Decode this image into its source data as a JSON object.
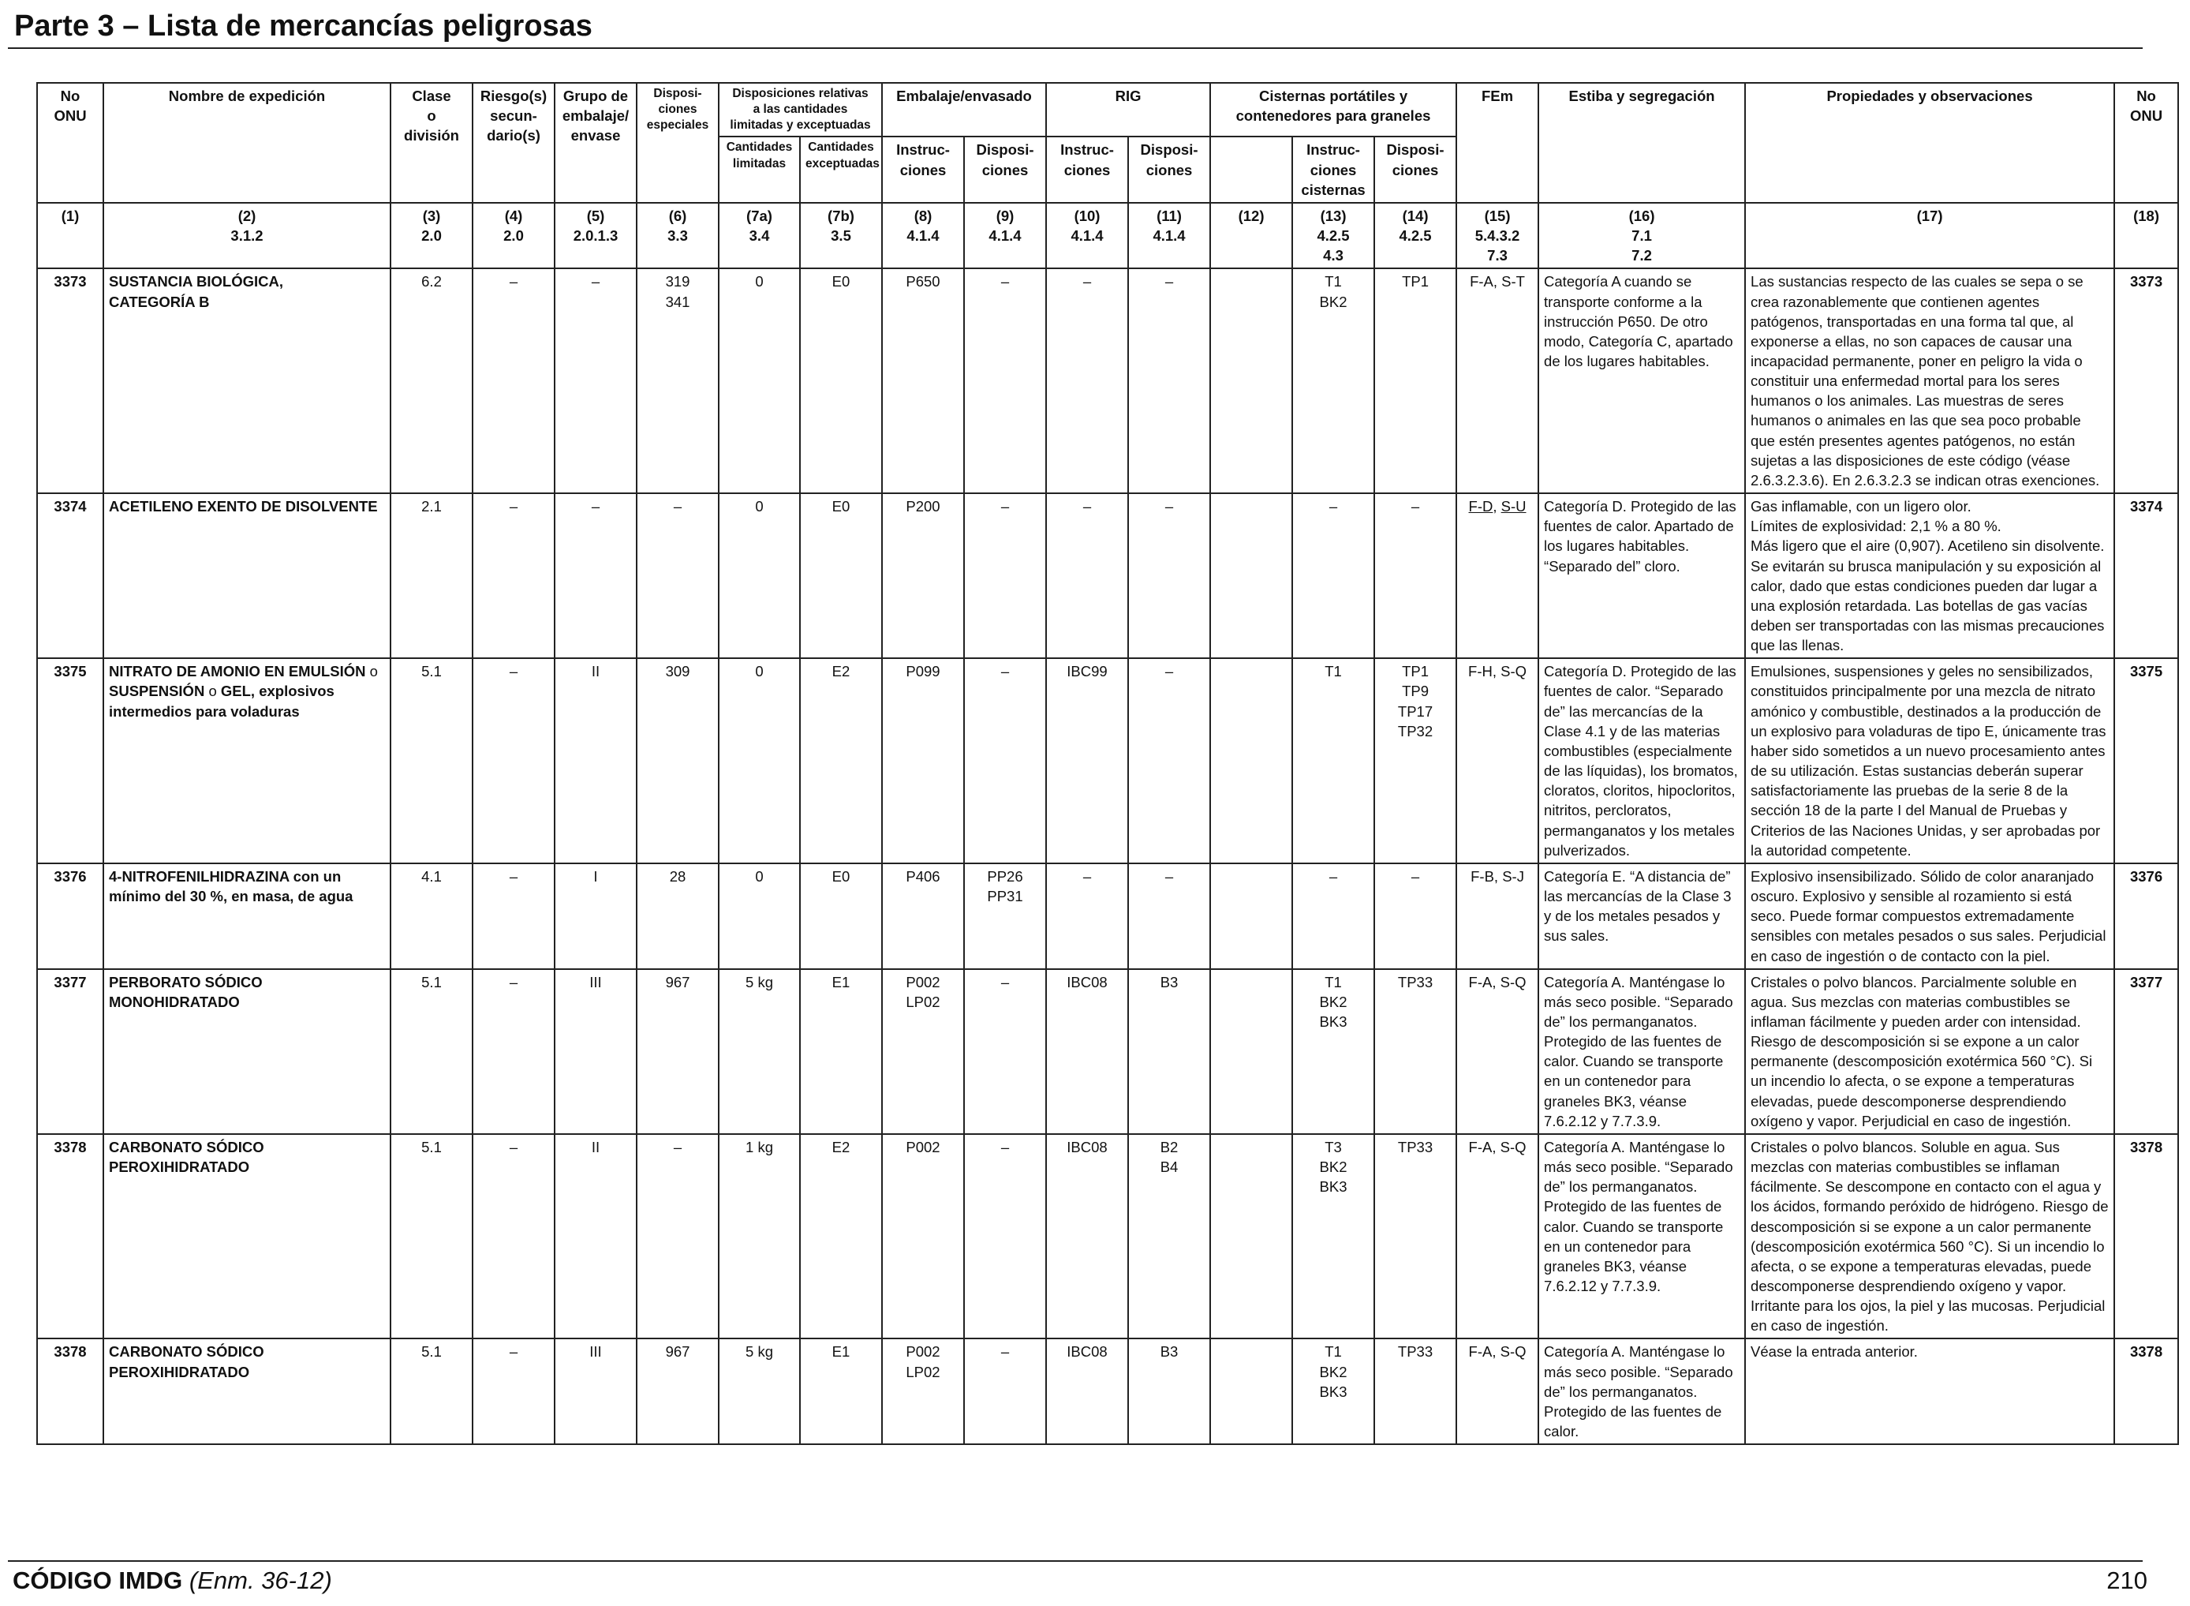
{
  "page": {
    "title": "Parte 3 – Lista de mercancías peligrosas",
    "footer_code": "CÓDIGO IMDG",
    "footer_amendment": "(Enm. 36-12)",
    "page_number": "210"
  },
  "header": {
    "no_onu": "No ONU",
    "nombre": "Nombre de expedición",
    "clase": [
      "Clase",
      "o",
      "división"
    ],
    "riesgo": [
      "Riesgo(s)",
      "secun-",
      "dario(s)"
    ],
    "grupo": [
      "Grupo de",
      "embalaje/",
      "envase"
    ],
    "disposiciones": [
      "Disposi-",
      "ciones",
      "especiales"
    ],
    "cantidades": [
      "Disposiciones relativas",
      "a las cantidades",
      "limitadas y exceptuadas"
    ],
    "cant_limitadas": [
      "Cantidades",
      "limitadas"
    ],
    "cant_exceptuadas": [
      "Cantidades",
      "exceptuadas"
    ],
    "embalaje": "Embalaje/envasado",
    "emb_instr": [
      "Instruc-",
      "ciones"
    ],
    "emb_disp": [
      "Disposi-",
      "ciones"
    ],
    "rig": "RIG",
    "rig_instr": [
      "Instruc-",
      "ciones"
    ],
    "rig_disp": [
      "Disposi-",
      "ciones"
    ],
    "cisternas": [
      "Cisternas portátiles y",
      "contenedores para graneles"
    ],
    "cis_instr": [
      "Instruc-",
      "ciones",
      "cisternas"
    ],
    "cis_disp": [
      "Disposi-",
      "ciones"
    ],
    "fem": "FEm",
    "estiba": "Estiba y segregación",
    "propiedades": "Propiedades y observaciones",
    "no_onu_right": "No ONU"
  },
  "column_numbers": [
    [
      "(1)"
    ],
    [
      "(2)",
      "3.1.2"
    ],
    [
      "(3)",
      "2.0"
    ],
    [
      "(4)",
      "2.0"
    ],
    [
      "(5)",
      "2.0.1.3"
    ],
    [
      "(6)",
      "3.3"
    ],
    [
      "(7a)",
      "3.4"
    ],
    [
      "(7b)",
      "3.5"
    ],
    [
      "(8)",
      "4.1.4"
    ],
    [
      "(9)",
      "4.1.4"
    ],
    [
      "(10)",
      "4.1.4"
    ],
    [
      "(11)",
      "4.1.4"
    ],
    [
      "(12)"
    ],
    [
      "(13)",
      "4.2.5",
      "4.3"
    ],
    [
      "(14)",
      "4.2.5"
    ],
    [
      "(15)",
      "5.4.3.2",
      "7.3"
    ],
    [
      "(16)",
      "7.1",
      "7.2"
    ],
    [
      "(17)"
    ],
    [
      "(18)"
    ]
  ],
  "rows": [
    {
      "un": "3373",
      "name": [
        "SUSTANCIA BIOLÓGICA,",
        "CATEGORÍA B"
      ],
      "clase": "6.2",
      "riesgo": "–",
      "grupo": "–",
      "disp": [
        "319",
        "341"
      ],
      "limitadas": "0",
      "exceptuadas": "E0",
      "emb_instr": [
        "P650"
      ],
      "emb_disp": [
        "–"
      ],
      "rig_instr": "–",
      "rig_disp": [
        "–"
      ],
      "col12": "",
      "cis_instr": [
        "T1",
        "BK2"
      ],
      "cis_disp": [
        "TP1"
      ],
      "fem": "F-A, S-T",
      "estiba": "Categoría A cuando se transporte conforme a la instrucción P650. De otro modo, Categoría C, apartado de los lugares habitables.",
      "propiedades": "Las sustancias respecto de las cuales se sepa o se crea razonablemente que contienen agentes patógenos, transportadas en una forma tal que, al exponerse a ellas, no son capaces de causar una incapacidad permanente, poner en peligro la vida o constituir una enfermedad mortal para los seres humanos o los animales. Las muestras de seres humanos o animales en las que sea poco probable que estén presentes agentes patógenos, no están sujetas a las disposiciones de este código (véase 2.6.3.2.3.6). En 2.6.3.2.3 se indican otras exenciones."
    },
    {
      "un": "3374",
      "name": [
        "ACETILENO EXENTO DE DISOLVENTE"
      ],
      "clase": "2.1",
      "riesgo": "–",
      "grupo": "–",
      "disp": [
        "–"
      ],
      "limitadas": "0",
      "exceptuadas": "E0",
      "emb_instr": [
        "P200"
      ],
      "emb_disp": [
        "–"
      ],
      "rig_instr": "–",
      "rig_disp": [
        "–"
      ],
      "col12": "",
      "cis_instr": [
        "–"
      ],
      "cis_disp": [
        "–"
      ],
      "fem_a": "F-D",
      "fem_sep": ", ",
      "fem_b": "S-U",
      "estiba": "Categoría D. Protegido de las fuentes de calor. Apartado de los lugares habitables. “Separado del” cloro.",
      "propiedades": [
        "Gas inflamable, con un ligero olor.",
        "Límites de explosividad: 2,1 % a 80 %.",
        "Más ligero que el aire (0,907). Acetileno sin disolvente. Se evitarán su brusca manipulación y su exposición al calor, dado que estas condiciones pueden dar lugar a una explosión retardada. Las botellas de gas vacías deben ser transportadas con las mismas precauciones que las llenas."
      ]
    },
    {
      "un": "3375",
      "name_bold": "NITRATO DE AMONIO EN EMULSIÓN",
      "name_o1": " o ",
      "name_bold2": "SUSPENSIÓN",
      "name_o2": " o ",
      "name_bold3": "GEL, explosivos intermedios para voladuras",
      "clase": "5.1",
      "riesgo": "–",
      "grupo": "II",
      "disp": [
        "309"
      ],
      "limitadas": "0",
      "exceptuadas": "E2",
      "emb_instr": [
        "P099"
      ],
      "emb_disp": [
        "–"
      ],
      "rig_instr": "IBC99",
      "rig_disp": [
        "–"
      ],
      "col12": "",
      "cis_instr": [
        "T1"
      ],
      "cis_disp": [
        "TP1",
        "TP9",
        "TP17",
        "TP32"
      ],
      "fem": "F-H, S-Q",
      "estiba": "Categoría D. Protegido de las fuentes de calor. “Separado de” las mercancías de la Clase 4.1 y de las materias combustibles (especialmente de las líquidas), los bromatos, cloratos, cloritos, hipocloritos, nitritos, percloratos, permanganatos y los metales pulverizados.",
      "propiedades": "Emulsiones, suspensiones y geles no sensibilizados, constituidos principalmente por una mezcla de nitrato amónico y combustible, destinados a la producción de un explosivo para voladuras de tipo E, únicamente tras haber sido sometidos a un nuevo procesamiento antes de su utilización. Estas sustancias deberán superar satisfactoriamente las pruebas de la serie 8 de la sección 18 de la parte I del Manual de Pruebas y Criterios de las Naciones Unidas, y ser aprobadas por la autoridad competente."
    },
    {
      "un": "3376",
      "name": [
        "4-NITROFENILHIDRAZINA con un mínimo del 30 %, en masa, de agua"
      ],
      "clase": "4.1",
      "riesgo": "–",
      "grupo": "I",
      "disp": [
        "28"
      ],
      "limitadas": "0",
      "exceptuadas": "E0",
      "emb_instr": [
        "P406"
      ],
      "emb_disp": [
        "PP26",
        "PP31"
      ],
      "rig_instr": "–",
      "rig_disp": [
        "–"
      ],
      "col12": "",
      "cis_instr": [
        "–"
      ],
      "cis_disp": [
        "–"
      ],
      "fem": "F-B, S-J",
      "estiba": "Categoría E. “A distancia de” las mercancías de la Clase 3 y de los metales pesados y sus sales.",
      "propiedades": "Explosivo insensibilizado. Sólido de color anaranjado oscuro. Explosivo y sensible al rozamiento si está seco. Puede formar compuestos extremadamente sensibles con metales pesados o sus sales. Perjudicial en caso de ingestión o de contacto con la piel."
    },
    {
      "un": "3377",
      "name": [
        "PERBORATO SÓDICO",
        "MONOHIDRATADO"
      ],
      "clase": "5.1",
      "riesgo": "–",
      "grupo": "III",
      "disp": [
        "967"
      ],
      "limitadas": "5 kg",
      "exceptuadas": "E1",
      "emb_instr": [
        "P002",
        "LP02"
      ],
      "emb_disp": [
        "–"
      ],
      "rig_instr": "IBC08",
      "rig_disp": [
        "B3"
      ],
      "col12": "",
      "cis_instr": [
        "T1",
        "BK2",
        "BK3"
      ],
      "cis_disp": [
        "TP33"
      ],
      "fem": "F-A, S-Q",
      "estiba": "Categoría A. Manténgase lo más seco posible. “Separado de” los permanganatos. Protegido de las fuentes de calor. Cuando se transporte en un contenedor para graneles BK3, véanse 7.6.2.12 y 7.7.3.9.",
      "propiedades": "Cristales o polvo blancos. Parcialmente soluble en agua. Sus mezclas con materias combustibles se inflaman fácilmente y pueden arder con intensidad. Riesgo de descomposición si se expone a un calor permanente (descomposición exotérmica 560 °C). Si un incendio lo afecta, o se expone a temperaturas elevadas, puede descomponerse desprendiendo oxígeno y vapor. Perjudicial en caso de ingestión."
    },
    {
      "un": "3378",
      "name": [
        "CARBONATO SÓDICO",
        "PEROXIHIDRATADO"
      ],
      "clase": "5.1",
      "riesgo": "–",
      "grupo": "II",
      "disp": [
        "–"
      ],
      "limitadas": "1 kg",
      "exceptuadas": "E2",
      "emb_instr": [
        "P002"
      ],
      "emb_disp": [
        "–"
      ],
      "rig_instr": "IBC08",
      "rig_disp": [
        "B2",
        "B4"
      ],
      "col12": "",
      "cis_instr": [
        "T3",
        "BK2",
        "BK3"
      ],
      "cis_disp": [
        "TP33"
      ],
      "fem": "F-A, S-Q",
      "estiba": "Categoría A. Manténgase lo más seco posible. “Separado de” los permanganatos. Protegido de las fuentes de calor. Cuando se transporte en un contenedor para graneles BK3, véanse 7.6.2.12 y 7.7.3.9.",
      "propiedades": "Cristales o polvo blancos. Soluble en agua. Sus mezclas con materias combustibles se inflaman fácilmente. Se descompone en contacto con el agua y los ácidos, formando peróxido de hidrógeno. Riesgo de descomposición si se expone a un calor permanente (descomposición exotérmica 560 °C). Si un incendio lo afecta, o se expone a temperaturas elevadas, puede descomponerse desprendiendo oxígeno y vapor. Irritante para los ojos, la piel y las mucosas. Perjudicial en caso de ingestión."
    },
    {
      "un": "3378",
      "name": [
        "CARBONATO SÓDICO",
        "PEROXIHIDRATADO"
      ],
      "clase": "5.1",
      "riesgo": "–",
      "grupo": "III",
      "disp": [
        "967"
      ],
      "limitadas": "5 kg",
      "exceptuadas": "E1",
      "emb_instr": [
        "P002",
        "LP02"
      ],
      "emb_disp": [
        "–"
      ],
      "rig_instr": "IBC08",
      "rig_disp": [
        "B3"
      ],
      "col12": "",
      "cis_instr": [
        "T1",
        "BK2",
        "BK3"
      ],
      "cis_disp": [
        "TP33"
      ],
      "fem": "F-A, S-Q",
      "estiba": "Categoría A. Manténgase lo más seco posible. “Separado de” los permanganatos. Protegido de las fuentes de calor.",
      "propiedades": "Véase la entrada anterior."
    }
  ]
}
